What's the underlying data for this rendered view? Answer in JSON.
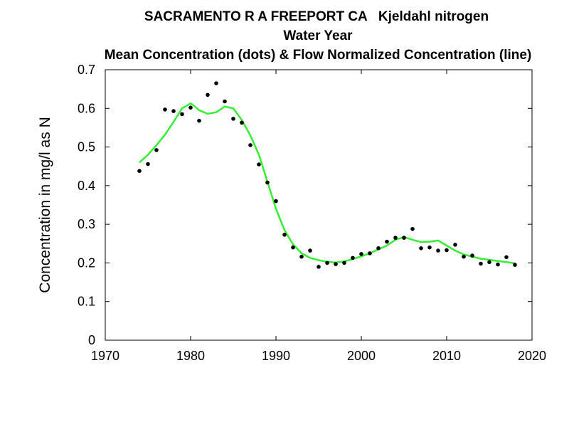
{
  "chart_data": {
    "type": "scatter",
    "title_lines": [
      "SACRAMENTO R A FREEPORT CA   Kjeldahl nitrogen",
      "Water Year",
      "Mean Concentration (dots) & Flow Normalized Concentration (line)"
    ],
    "xlabel": "",
    "ylabel": "Concentration in mg/l as N",
    "xlim": [
      1970,
      2020
    ],
    "ylim": [
      0,
      0.7
    ],
    "xticks": [
      1970,
      1980,
      1990,
      2000,
      2010,
      2020
    ],
    "yticks": [
      0,
      0.1,
      0.2,
      0.3,
      0.4,
      0.5,
      0.6,
      0.7
    ],
    "grid": false,
    "series": [
      {
        "kind": "points",
        "color": "#000000",
        "x": [
          1974,
          1975,
          1976,
          1977,
          1978,
          1979,
          1980,
          1981,
          1982,
          1983,
          1984,
          1985,
          1986,
          1987,
          1988,
          1989,
          1990,
          1991,
          1992,
          1993,
          1994,
          1995,
          1996,
          1997,
          1998,
          1999,
          2000,
          2001,
          2002,
          2003,
          2004,
          2005,
          2006,
          2007,
          2008,
          2009,
          2010,
          2011,
          2012,
          2013,
          2014,
          2015,
          2016,
          2017,
          2018
        ],
        "y": [
          0.438,
          0.456,
          0.492,
          0.597,
          0.593,
          0.585,
          0.602,
          0.568,
          0.635,
          0.665,
          0.618,
          0.573,
          0.563,
          0.505,
          0.455,
          0.408,
          0.36,
          0.273,
          0.24,
          0.216,
          0.232,
          0.19,
          0.2,
          0.197,
          0.2,
          0.213,
          0.223,
          0.225,
          0.238,
          0.255,
          0.265,
          0.265,
          0.288,
          0.238,
          0.24,
          0.232,
          0.233,
          0.247,
          0.216,
          0.219,
          0.198,
          0.202,
          0.196,
          0.215,
          0.195
        ]
      },
      {
        "kind": "line",
        "color": "#33ee33",
        "x": [
          1974,
          1975,
          1976,
          1977,
          1978,
          1979,
          1980,
          1980.5,
          1981,
          1982,
          1983,
          1984,
          1985,
          1986,
          1987,
          1988,
          1989,
          1990,
          1991,
          1992,
          1993,
          1994,
          1995,
          1996,
          1997,
          1998,
          1999,
          2000,
          2001,
          2002,
          2003,
          2004,
          2005,
          2006,
          2007,
          2008,
          2009,
          2010,
          2011,
          2012,
          2013,
          2014,
          2015,
          2016,
          2017,
          2018
        ],
        "y": [
          0.46,
          0.48,
          0.505,
          0.532,
          0.565,
          0.6,
          0.613,
          0.605,
          0.595,
          0.586,
          0.59,
          0.605,
          0.6,
          0.57,
          0.53,
          0.48,
          0.41,
          0.34,
          0.285,
          0.248,
          0.225,
          0.213,
          0.207,
          0.203,
          0.201,
          0.204,
          0.21,
          0.217,
          0.225,
          0.235,
          0.245,
          0.26,
          0.267,
          0.26,
          0.254,
          0.255,
          0.258,
          0.245,
          0.232,
          0.222,
          0.216,
          0.211,
          0.208,
          0.205,
          0.202,
          0.199
        ]
      }
    ]
  }
}
